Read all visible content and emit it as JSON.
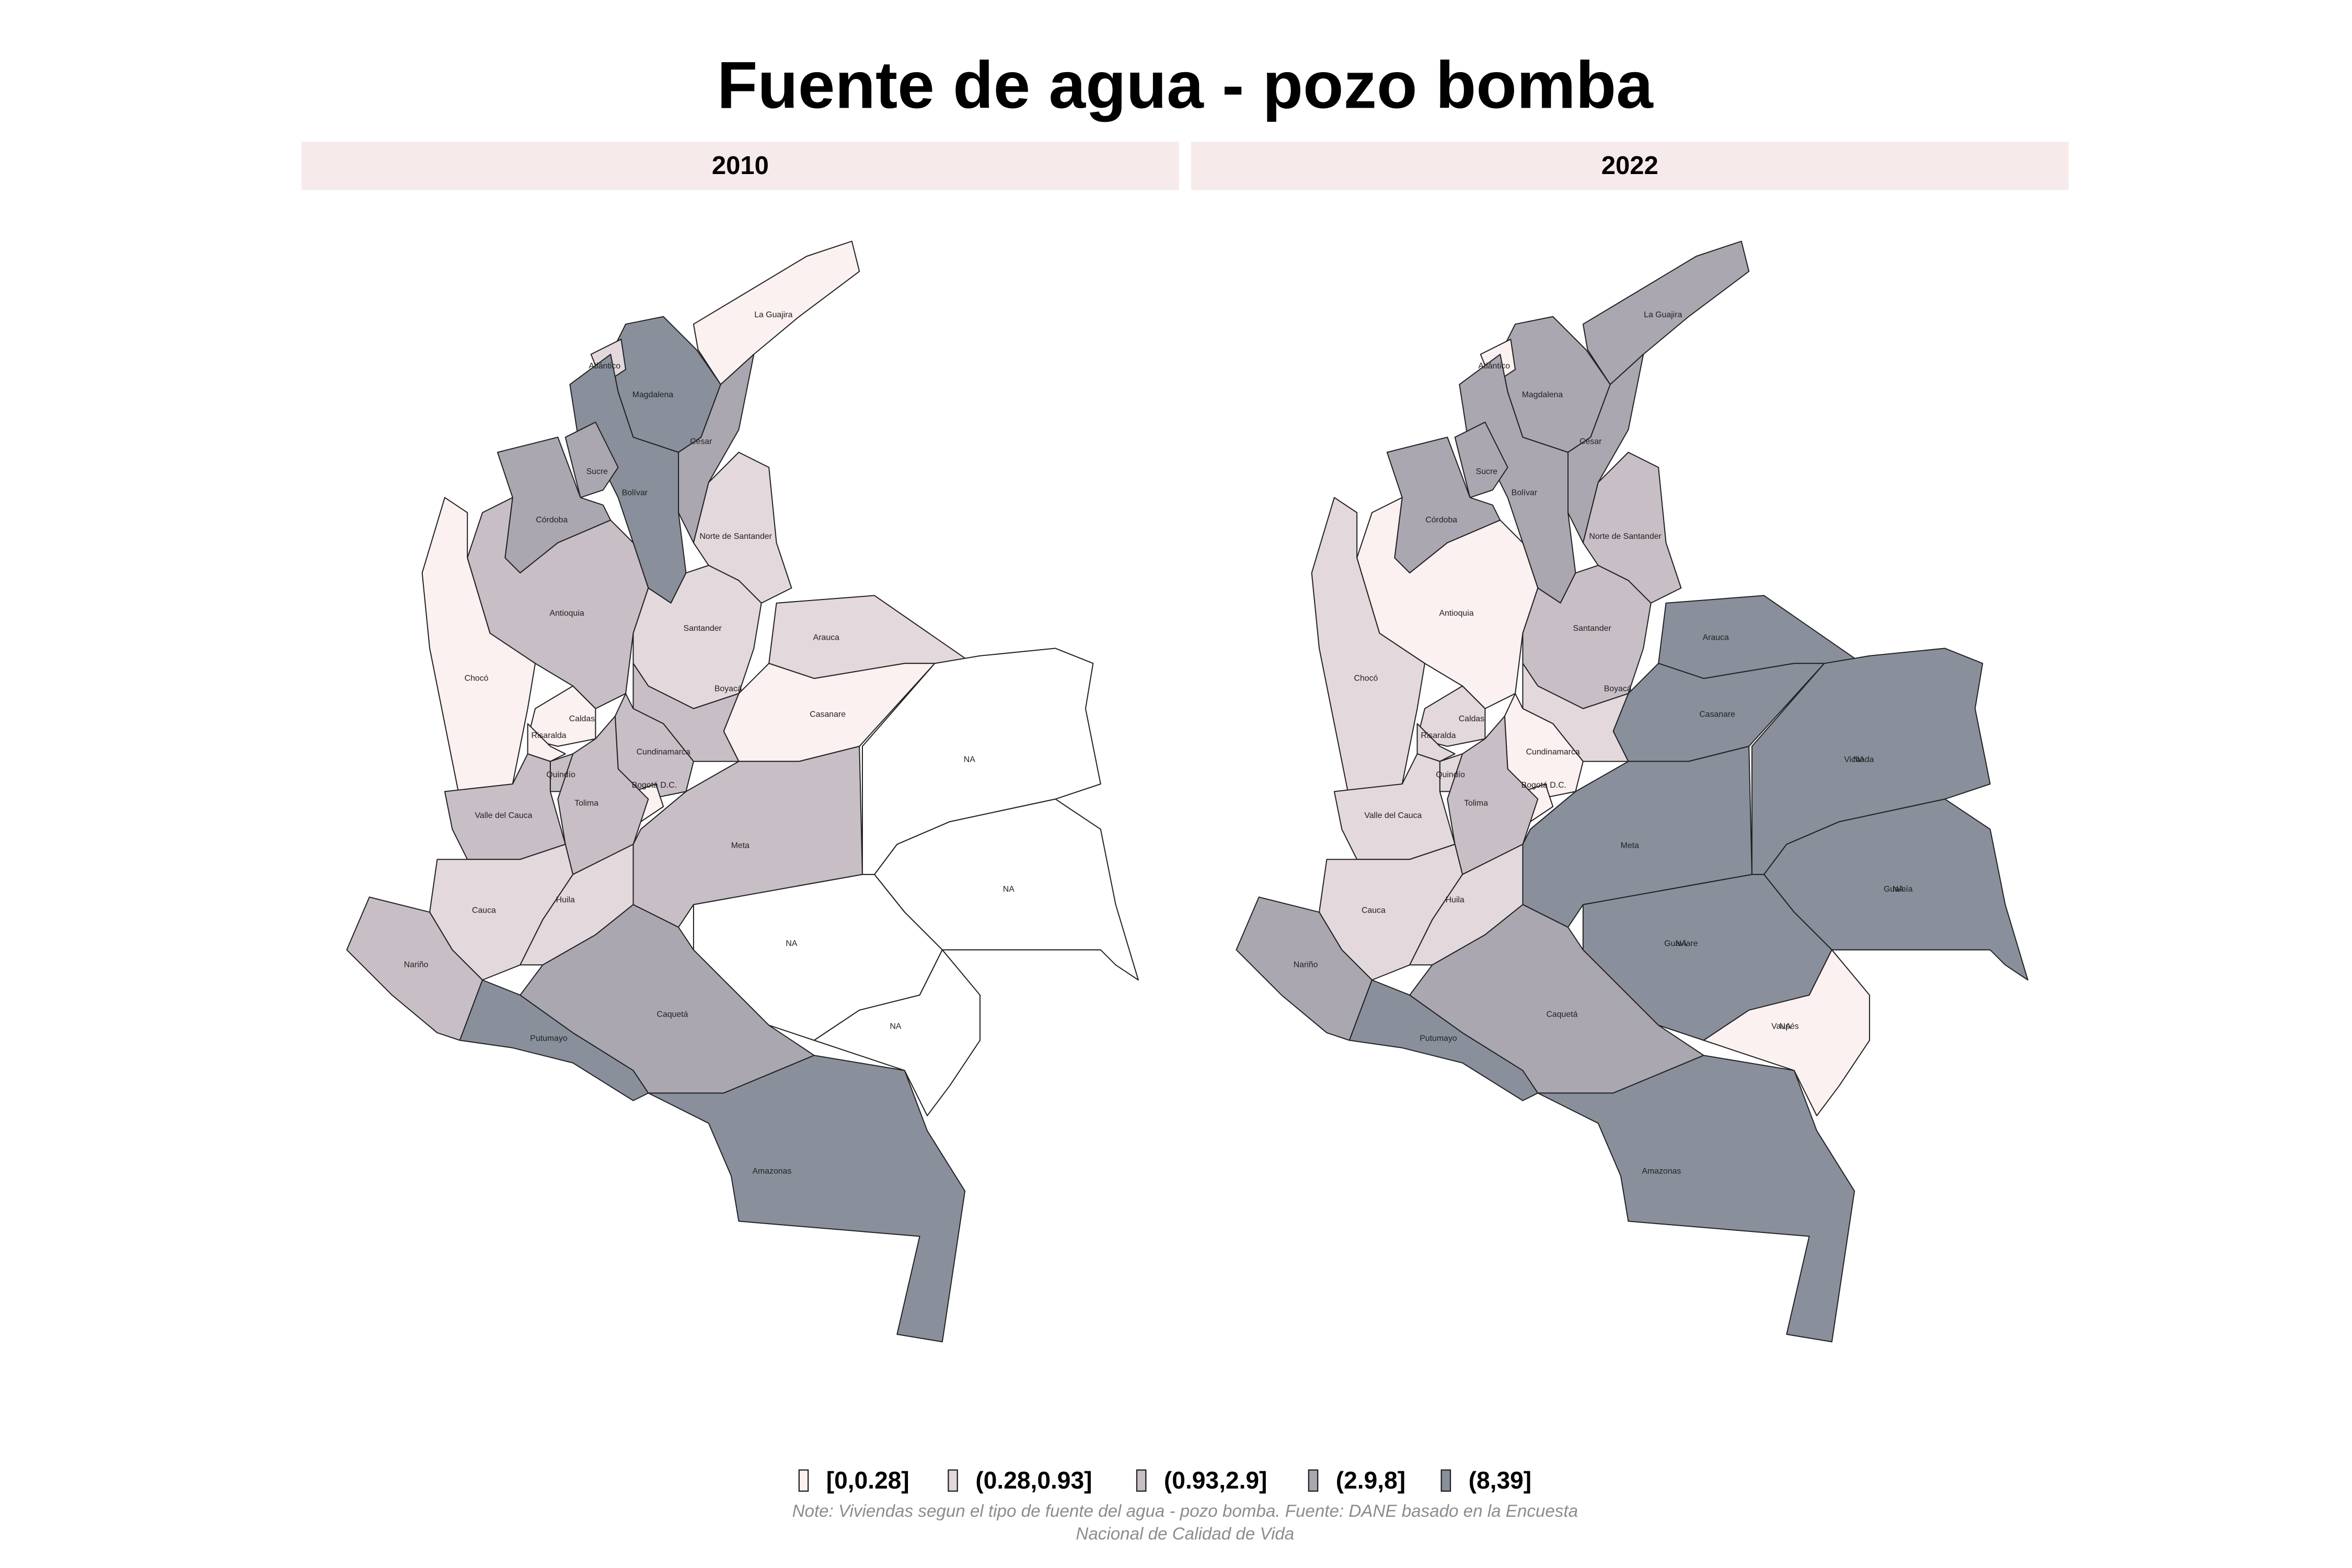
{
  "title": "Fuente de agua - pozo bomba",
  "legend": [
    {
      "label": "[0,0.28]",
      "color": "#fbf1f0"
    },
    {
      "label": "(0.28,0.93]",
      "color": "#e3d8db"
    },
    {
      "label": "(0.93,2.9]",
      "color": "#c8bec6"
    },
    {
      "label": "(2.9,8]",
      "color": "#aaa7b1"
    },
    {
      "label": "(8,39]",
      "color": "#8a8f9c"
    }
  ],
  "panels": [
    {
      "label": "2010",
      "regions": [
        {
          "labels": [
            "La Guajira"
          ],
          "color": "#fbf1f0"
        },
        {
          "labels": [
            "Magdalena"
          ],
          "color": "#8a8f9c"
        },
        {
          "labels": [
            "Atlántico"
          ],
          "color": "#e3d8db"
        },
        {
          "labels": [
            "Cesar"
          ],
          "color": "#aaa7b1"
        },
        {
          "labels": [
            "Bolívar"
          ],
          "color": "#8a8f9c"
        },
        {
          "labels": [
            "Sucre"
          ],
          "color": "#aaa7b1"
        },
        {
          "labels": [
            "Córdoba"
          ],
          "color": "#aaa7b1"
        },
        {
          "labels": [
            "Norte de Santander"
          ],
          "color": "#e3d8db"
        },
        {
          "labels": [
            "Antioquia"
          ],
          "color": "#c8bec6"
        },
        {
          "labels": [
            "Chocó"
          ],
          "color": "#fbf1f0"
        },
        {
          "labels": [
            "Santander"
          ],
          "color": "#e3d8db"
        },
        {
          "labels": [
            "Arauca"
          ],
          "color": "#e3d8db"
        },
        {
          "labels": [
            "Casanare"
          ],
          "color": "#fbf1f0"
        },
        {
          "labels": [
            "Boyacá"
          ],
          "color": "#c8bec6"
        },
        {
          "labels": [
            "Caldas"
          ],
          "color": "#fbf1f0"
        },
        {
          "labels": [
            "Risaralda"
          ],
          "color": "#fbf1f0"
        },
        {
          "labels": [
            "Quindío"
          ],
          "color": "#c8bec6"
        },
        {
          "labels": [
            "Cundinamarca"
          ],
          "color": "#c8bec6"
        },
        {
          "labels": [
            "Bogotá D.C."
          ],
          "color": "#fbf1f0"
        },
        {
          "labels": [
            "Tolima"
          ],
          "color": "#c8bec6"
        },
        {
          "labels": [
            "Valle del Cauca"
          ],
          "color": "#c8bec6"
        },
        {
          "labels": [
            "Meta"
          ],
          "color": "#c8bec6"
        },
        {
          "labels": [
            "Cauca"
          ],
          "color": "#e3d8db"
        },
        {
          "labels": [
            "Huila"
          ],
          "color": "#e3d8db"
        },
        {
          "labels": [
            "Nariño"
          ],
          "color": "#c8bec6"
        },
        {
          "labels": [
            "Putumayo"
          ],
          "color": "#8a8f9c"
        },
        {
          "labels": [
            "Caquetá"
          ],
          "color": "#aaa7b1"
        },
        {
          "labels": [
            "Amazonas"
          ],
          "color": "#8a8f9c"
        },
        {
          "labels": [
            "NA"
          ],
          "color": "#ffffff"
        },
        {
          "labels": [
            "NA"
          ],
          "color": "#ffffff"
        },
        {
          "labels": [
            "NA"
          ],
          "color": "#ffffff"
        },
        {
          "labels": [
            "NA"
          ],
          "color": "#ffffff"
        }
      ]
    },
    {
      "label": "2022",
      "regions": [
        {
          "labels": [
            "La Guajira"
          ],
          "color": "#aaa7b1"
        },
        {
          "labels": [
            "Magdalena"
          ],
          "color": "#aaa7b1"
        },
        {
          "labels": [
            "Atlántico"
          ],
          "color": "#fbf1f0"
        },
        {
          "labels": [
            "Cesar"
          ],
          "color": "#aaa7b1"
        },
        {
          "labels": [
            "Bolívar"
          ],
          "color": "#aaa7b1"
        },
        {
          "labels": [
            "Sucre"
          ],
          "color": "#aaa7b1"
        },
        {
          "labels": [
            "Córdoba"
          ],
          "color": "#aaa7b1"
        },
        {
          "labels": [
            "Norte de Santander"
          ],
          "color": "#c8bec6"
        },
        {
          "labels": [
            "Antioquia"
          ],
          "color": "#fbf1f0"
        },
        {
          "labels": [
            "Chocó"
          ],
          "color": "#e3d8db"
        },
        {
          "labels": [
            "Santander"
          ],
          "color": "#c8bec6"
        },
        {
          "labels": [
            "Arauca"
          ],
          "color": "#8a8f9c"
        },
        {
          "labels": [
            "Casanare"
          ],
          "color": "#8a8f9c"
        },
        {
          "labels": [
            "Boyacá"
          ],
          "color": "#e3d8db"
        },
        {
          "labels": [
            "Caldas"
          ],
          "color": "#e3d8db"
        },
        {
          "labels": [
            "Risaralda"
          ],
          "color": "#e3d8db"
        },
        {
          "labels": [
            "Quindío"
          ],
          "color": "#e3d8db"
        },
        {
          "labels": [
            "Cundinamarca"
          ],
          "color": "#fbf1f0"
        },
        {
          "labels": [
            "Bogotá D.C."
          ],
          "color": "#fbf1f0"
        },
        {
          "labels": [
            "Tolima"
          ],
          "color": "#c8bec6"
        },
        {
          "labels": [
            "Valle del Cauca"
          ],
          "color": "#e3d8db"
        },
        {
          "labels": [
            "Meta"
          ],
          "color": "#8a8f9c"
        },
        {
          "labels": [
            "Cauca"
          ],
          "color": "#e3d8db"
        },
        {
          "labels": [
            "Huila"
          ],
          "color": "#e3d8db"
        },
        {
          "labels": [
            "Nariño"
          ],
          "color": "#aaa7b1"
        },
        {
          "labels": [
            "Putumayo"
          ],
          "color": "#8a8f9c"
        },
        {
          "labels": [
            "Caquetá"
          ],
          "color": "#aaa7b1"
        },
        {
          "labels": [
            "Amazonas"
          ],
          "color": "#8a8f9c"
        },
        {
          "labels": [
            "Vichada",
            "NA"
          ],
          "color": "#8a8f9c"
        },
        {
          "labels": [
            "Guainía",
            "NA"
          ],
          "color": "#8a8f9c"
        },
        {
          "labels": [
            "Guaviare",
            "NA"
          ],
          "color": "#8a8f9c"
        },
        {
          "labels": [
            "Vaupés",
            "NA"
          ],
          "color": "#fbf1f0"
        }
      ]
    }
  ],
  "note": [
    "Note: Viviendas segun el tipo de fuente del agua - pozo bomba. Fuente: DANE basado en la Encuesta",
    "Nacional de Calidad de Vida"
  ]
}
